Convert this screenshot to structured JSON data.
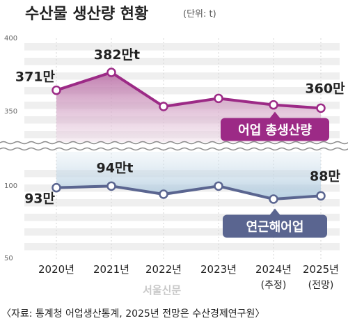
{
  "chart_data": [
    {
      "type": "line",
      "title": "수산물 생산량 현황",
      "unit": "(단위: t)",
      "categories": [
        "2020년",
        "2021년",
        "2022년",
        "2023년",
        "2024년",
        "2025년"
      ],
      "category_subs": [
        "",
        "",
        "",
        "",
        "(추정)",
        "(전망)"
      ],
      "axis_break": true,
      "panels": [
        {
          "name": "어업 총생산량",
          "ylim": [
            340,
            400
          ],
          "yticks": [
            "400",
            "350"
          ],
          "values": [
            371,
            382,
            361,
            366,
            362,
            360
          ],
          "color": "#9c2a86",
          "fill_color": "#c891b8",
          "point_labels": [
            {
              "index": 0,
              "text": "371만"
            },
            {
              "index": 1,
              "text": "382만t"
            },
            {
              "index": 5,
              "text": "360만"
            }
          ]
        },
        {
          "name": "연근해어업",
          "ylim": [
            50,
            110
          ],
          "yticks": [
            "100",
            "50"
          ],
          "values": [
            93,
            94,
            89,
            94,
            86,
            88
          ],
          "color": "#5a6590",
          "fill_color": "#b6cde0",
          "point_labels": [
            {
              "index": 0,
              "text": "93만"
            },
            {
              "index": 1,
              "text": "94만t"
            },
            {
              "index": 5,
              "text": "88만"
            }
          ]
        }
      ]
    }
  ],
  "source": "〈자료: 통계청 어업생산통계, 2025년 전망은 수산경제연구원〉",
  "logo": "서울신문"
}
